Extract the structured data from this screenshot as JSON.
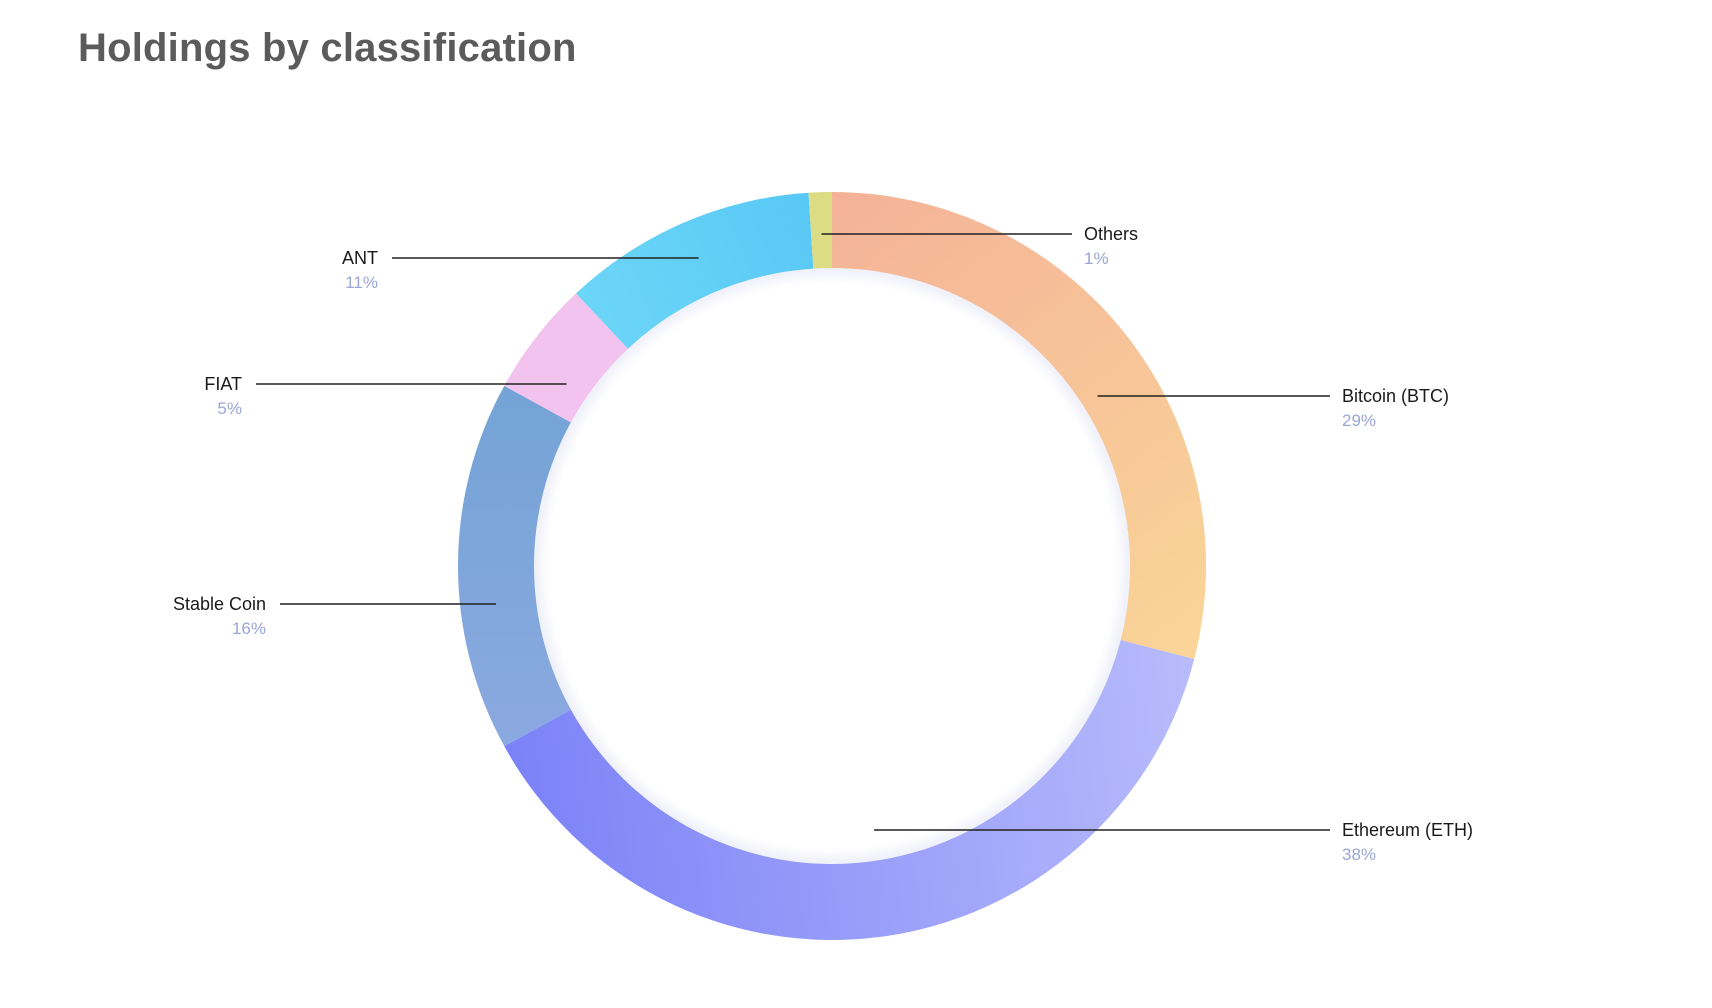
{
  "title": "Holdings by classification",
  "chart_data": {
    "type": "pie",
    "style": "donut",
    "title": "Holdings by classification",
    "slices": [
      {
        "label": "Bitcoin (BTC)",
        "percent_label": "29%",
        "value": 29,
        "colors": [
          "#f4b298",
          "#fad598"
        ]
      },
      {
        "label": "Ethereum (ETH)",
        "percent_label": "38%",
        "value": 38,
        "colors": [
          "#b8bbfb",
          "#7b82f7"
        ]
      },
      {
        "label": "Stable Coin",
        "percent_label": "16%",
        "value": 16,
        "colors": [
          "#8aa9e0",
          "#74a3d6"
        ]
      },
      {
        "label": "FIAT",
        "percent_label": "5%",
        "value": 5,
        "colors": [
          "#f3c3ef",
          "#f3c3ef"
        ]
      },
      {
        "label": "ANT",
        "percent_label": "11%",
        "value": 11,
        "colors": [
          "#6cd6f7",
          "#58c8f5"
        ]
      },
      {
        "label": "Others",
        "percent_label": "1%",
        "value": 1,
        "colors": [
          "#dcdc84",
          "#dcdc84"
        ]
      }
    ]
  }
}
